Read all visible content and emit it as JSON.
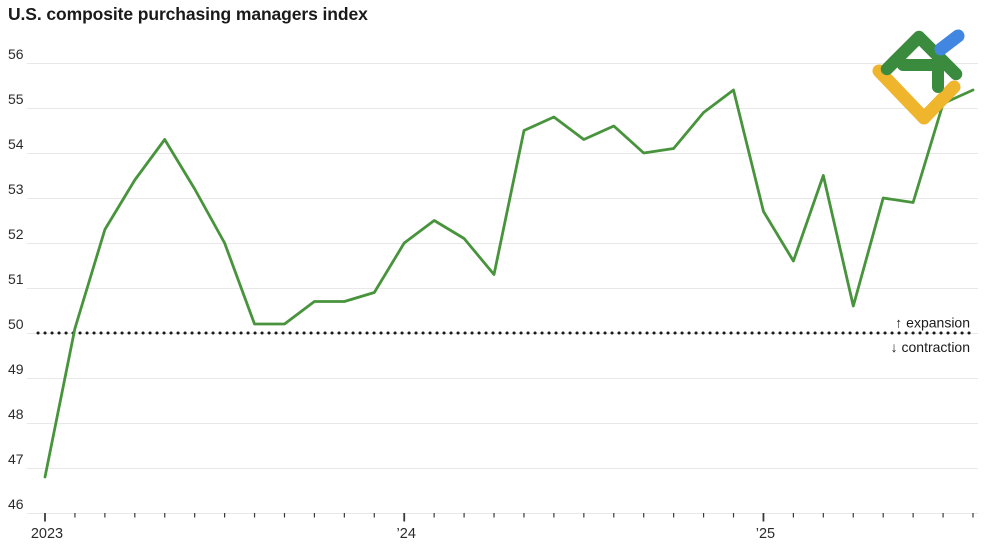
{
  "title": "U.S. composite purchasing managers index",
  "colors": {
    "line": "#48943C",
    "grid": "#e8e8e8",
    "dotted": "#1a1a1a",
    "tick": "#3a3a3a",
    "text": "#2b2b2b",
    "title": "#1a1a1a"
  },
  "logo": {
    "name": "litefinance-logo",
    "green": "#3B8B3E",
    "blue": "#4187E2",
    "yellow": "#EFB52D"
  },
  "chart_data": {
    "type": "line",
    "title": "U.S. composite purchasing managers index",
    "series_name": "U.S. composite PMI",
    "x": [
      "Jan 2023",
      "Feb 2023",
      "Mar 2023",
      "Apr 2023",
      "May 2023",
      "Jun 2023",
      "Jul 2023",
      "Aug 2023",
      "Sep 2023",
      "Oct 2023",
      "Nov 2023",
      "Dec 2023",
      "Jan 2024",
      "Feb 2024",
      "Mar 2024",
      "Apr 2024",
      "May 2024",
      "Jun 2024",
      "Jul 2024",
      "Aug 2024",
      "Sep 2024",
      "Oct 2024",
      "Nov 2024",
      "Dec 2024",
      "Jan 2025",
      "Feb 2025",
      "Mar 2025",
      "Apr 2025",
      "May 2025",
      "Jun 2025",
      "Jul 2025",
      "Aug 2025"
    ],
    "values": [
      46.8,
      50.1,
      52.3,
      53.4,
      54.3,
      53.2,
      52.0,
      50.2,
      50.2,
      50.7,
      50.7,
      50.9,
      52.0,
      52.5,
      52.1,
      51.3,
      54.5,
      54.8,
      54.3,
      54.6,
      54.0,
      54.1,
      54.9,
      55.4,
      52.7,
      51.6,
      53.5,
      50.6,
      53.0,
      52.9,
      55.1,
      55.4
    ],
    "ylim": [
      46,
      56
    ],
    "yticks": [
      46,
      47,
      48,
      49,
      50,
      51,
      52,
      53,
      54,
      55,
      56
    ],
    "x_axis": {
      "tick_interval": "month",
      "year_ticks": [
        {
          "index": 0,
          "label": "2023"
        },
        {
          "index": 12,
          "label": "’24"
        },
        {
          "index": 24,
          "label": "’25"
        }
      ]
    },
    "grid": "horizontal",
    "legend": "none",
    "line_color": "#48943C",
    "threshold": {
      "value": 50,
      "style": "dotted",
      "color": "#1a1a1a",
      "label_above": "↑ expansion",
      "label_below": "↓ contraction"
    }
  }
}
